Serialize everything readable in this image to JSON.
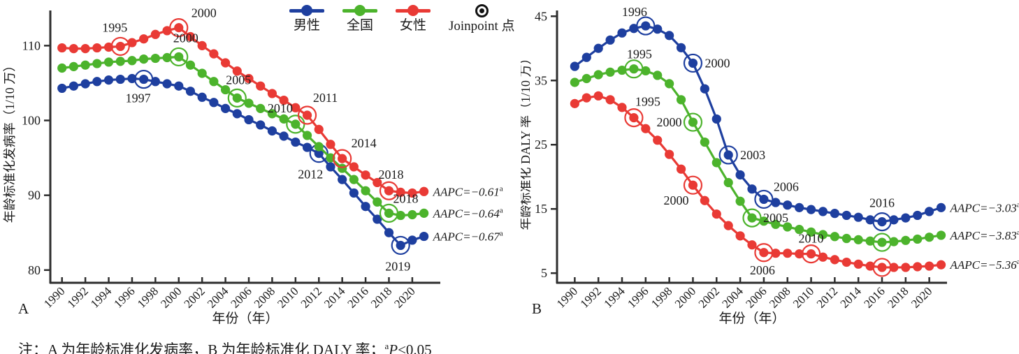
{
  "legend": {
    "items": [
      {
        "label": "男性",
        "color": "#1e3f9f",
        "type": "line-dot"
      },
      {
        "label": "全国",
        "color": "#4cb32c",
        "type": "line-dot"
      },
      {
        "label": "女性",
        "color": "#e93a35",
        "type": "line-dot"
      },
      {
        "label": "Joinpoint 点",
        "color": "#111111",
        "type": "joinpoint"
      }
    ]
  },
  "note": {
    "prefix": "注：A 为年龄标准化发病率，B 为年龄标准化 DALY 率；",
    "sup": "a",
    "p": "P",
    "rest": "<0.05"
  },
  "chart_data": [
    {
      "panel_label": "A",
      "type": "line",
      "xlabel": "年份（年）",
      "ylabel": "年龄标准化发病率（1/10 万）",
      "years": [
        1990,
        1991,
        1992,
        1993,
        1994,
        1995,
        1996,
        1997,
        1998,
        1999,
        2000,
        2001,
        2002,
        2003,
        2004,
        2005,
        2006,
        2007,
        2008,
        2009,
        2010,
        2011,
        2012,
        2013,
        2014,
        2015,
        2016,
        2017,
        2018,
        2019,
        2020,
        2021
      ],
      "xticks": [
        1990,
        1992,
        1994,
        1996,
        1998,
        2000,
        2002,
        2004,
        2006,
        2008,
        2010,
        2012,
        2014,
        2016,
        2018,
        2020
      ],
      "yticks": [
        80,
        90,
        100,
        110
      ],
      "xlim": [
        1989.0,
        2022.4
      ],
      "ylim": [
        78.3,
        114.7
      ],
      "series": [
        {
          "name": "男性",
          "color": "#1e3f9f",
          "aapc": "AAPC=−0.67",
          "aapc_sup": "a",
          "values": [
            104.3,
            104.6,
            104.9,
            105.2,
            105.4,
            105.5,
            105.6,
            105.5,
            105.2,
            104.9,
            104.6,
            103.9,
            103.1,
            102.4,
            101.6,
            100.9,
            100.1,
            99.4,
            98.6,
            97.9,
            97.1,
            96.4,
            95.6,
            93.8,
            92.1,
            90.3,
            88.5,
            86.8,
            85.0,
            83.3,
            84.0,
            84.5
          ],
          "joinpoints": [
            {
              "year": 1997,
              "label": "1997",
              "dx": -8,
              "dy": 33,
              "anchor": "middle"
            },
            {
              "year": 2012,
              "label": "2012",
              "dx": -12,
              "dy": 36,
              "anchor": "middle"
            },
            {
              "year": 2019,
              "label": "2019",
              "dx": -4,
              "dy": 36,
              "anchor": "middle"
            }
          ]
        },
        {
          "name": "全国",
          "color": "#4cb32c",
          "aapc": "AAPC=−0.64",
          "aapc_sup": "a",
          "values": [
            107.0,
            107.2,
            107.4,
            107.6,
            107.8,
            107.9,
            108.0,
            108.2,
            108.3,
            108.4,
            108.5,
            107.4,
            106.3,
            105.2,
            104.1,
            103.0,
            102.3,
            101.6,
            100.9,
            100.2,
            99.5,
            98.0,
            96.5,
            95.0,
            93.6,
            92.1,
            90.6,
            89.1,
            87.6,
            87.3,
            87.4,
            87.6
          ],
          "joinpoints": [
            {
              "year": 2000,
              "label": "2000",
              "dx": 10,
              "dy": -21,
              "anchor": "middle"
            },
            {
              "year": 2005,
              "label": "2005",
              "dx": 2,
              "dy": -20,
              "anchor": "middle"
            },
            {
              "year": 2010,
              "label": "2010",
              "dx": -22,
              "dy": -17,
              "anchor": "middle"
            },
            {
              "year": 2018,
              "label": "2018",
              "dx": 24,
              "dy": -15,
              "anchor": "middle"
            }
          ]
        },
        {
          "name": "女性",
          "color": "#e93a35",
          "aapc": "AAPC=−0.61",
          "aapc_sup": "a",
          "values": [
            109.7,
            109.6,
            109.6,
            109.7,
            109.8,
            109.9,
            110.4,
            110.9,
            111.5,
            112.0,
            112.4,
            111.2,
            110.0,
            108.9,
            107.7,
            106.6,
            105.6,
            104.6,
            103.6,
            102.7,
            101.7,
            100.7,
            98.8,
            96.8,
            94.9,
            93.8,
            92.7,
            91.7,
            90.6,
            90.4,
            90.3,
            90.5
          ],
          "joinpoints": [
            {
              "year": 1995,
              "label": "1995",
              "dx": -8,
              "dy": -21,
              "anchor": "middle"
            },
            {
              "year": 2000,
              "label": "2000",
              "dx": 36,
              "dy": -15,
              "anchor": "middle"
            },
            {
              "year": 2011,
              "label": "2011",
              "dx": 26,
              "dy": -19,
              "anchor": "middle"
            },
            {
              "year": 2014,
              "label": "2014",
              "dx": 31,
              "dy": -16,
              "anchor": "middle"
            },
            {
              "year": 2018,
              "label": "2018",
              "dx": 3,
              "dy": -17,
              "anchor": "middle"
            }
          ]
        }
      ]
    },
    {
      "panel_label": "B",
      "type": "line",
      "xlabel": "年份（年）",
      "ylabel": "年龄标准化 DALY 率（1/10 万）",
      "years": [
        1990,
        1991,
        1992,
        1993,
        1994,
        1995,
        1996,
        1997,
        1998,
        1999,
        2000,
        2001,
        2002,
        2003,
        2004,
        2005,
        2006,
        2007,
        2008,
        2009,
        2010,
        2011,
        2012,
        2013,
        2014,
        2015,
        2016,
        2017,
        2018,
        2019,
        2020,
        2021
      ],
      "xticks": [
        1990,
        1992,
        1994,
        1996,
        1998,
        2000,
        2002,
        2004,
        2006,
        2008,
        2010,
        2012,
        2014,
        2016,
        2018,
        2020
      ],
      "yticks": [
        5,
        15,
        25,
        35,
        45
      ],
      "xlim": [
        1988.5,
        2021.5
      ],
      "ylim": [
        3.5,
        45.9
      ],
      "series": [
        {
          "name": "男性",
          "color": "#1e3f9f",
          "aapc": "AAPC=−3.03",
          "aapc_sup": "a",
          "values": [
            37.2,
            38.6,
            40.0,
            41.3,
            42.4,
            43.1,
            43.5,
            43.0,
            42.0,
            40.1,
            37.7,
            33.7,
            29.0,
            23.4,
            20.3,
            18.1,
            16.5,
            16.0,
            15.6,
            15.2,
            14.9,
            14.6,
            14.3,
            14.0,
            13.7,
            13.3,
            13.0,
            13.3,
            13.6,
            14.0,
            14.6,
            15.2
          ],
          "joinpoints": [
            {
              "year": 1996,
              "label": "1996",
              "dx": -16,
              "dy": -14,
              "anchor": "middle"
            },
            {
              "year": 2000,
              "label": "2000",
              "dx": 17,
              "dy": 6,
              "anchor": "start"
            },
            {
              "year": 2003,
              "label": "2003",
              "dx": 17,
              "dy": 6,
              "anchor": "start"
            },
            {
              "year": 2006,
              "label": "2006",
              "dx": 14,
              "dy": -12,
              "anchor": "start"
            },
            {
              "year": 2016,
              "label": "2016",
              "dx": 0,
              "dy": -21,
              "anchor": "middle"
            }
          ]
        },
        {
          "name": "全国",
          "color": "#4cb32c",
          "aapc": "AAPC=−3.83",
          "aapc_sup": "a",
          "values": [
            34.7,
            35.3,
            35.9,
            36.3,
            36.6,
            36.8,
            36.5,
            35.8,
            34.5,
            32.0,
            28.5,
            25.4,
            22.2,
            19.1,
            16.2,
            13.6,
            13.1,
            12.6,
            12.2,
            11.8,
            11.4,
            11.0,
            10.7,
            10.4,
            10.2,
            10.0,
            9.8,
            9.9,
            10.1,
            10.3,
            10.6,
            10.9
          ],
          "joinpoints": [
            {
              "year": 1995,
              "label": "1995",
              "dx": 8,
              "dy": -15,
              "anchor": "middle"
            },
            {
              "year": 2000,
              "label": "2000",
              "dx": -16,
              "dy": 6,
              "anchor": "end"
            },
            {
              "year": 2005,
              "label": "2005",
              "dx": 16,
              "dy": 6,
              "anchor": "start"
            },
            {
              "year": 2016,
              "label": "",
              "dx": 0,
              "dy": 0,
              "anchor": "middle"
            }
          ]
        },
        {
          "name": "女性",
          "color": "#e93a35",
          "aapc": "AAPC=−5.36",
          "aapc_sup": "a",
          "values": [
            31.4,
            32.3,
            32.6,
            32.0,
            30.8,
            29.2,
            27.5,
            25.7,
            23.5,
            21.2,
            18.7,
            16.3,
            14.2,
            12.4,
            10.8,
            9.4,
            8.2,
            8.1,
            8.1,
            8.0,
            8.0,
            7.5,
            7.1,
            6.7,
            6.4,
            6.1,
            5.9,
            5.9,
            5.9,
            6.0,
            6.1,
            6.3
          ],
          "joinpoints": [
            {
              "year": 1995,
              "label": "1995",
              "dx": 2,
              "dy": -17,
              "anchor": "start"
            },
            {
              "year": 2000,
              "label": "2000",
              "dx": -6,
              "dy": 28,
              "anchor": "end"
            },
            {
              "year": 2006,
              "label": "2006",
              "dx": -2,
              "dy": 31,
              "anchor": "middle"
            },
            {
              "year": 2010,
              "label": "2010",
              "dx": 0,
              "dy": -16,
              "anchor": "middle"
            },
            {
              "year": 2016,
              "label": "",
              "dx": 0,
              "dy": 0,
              "anchor": "middle"
            }
          ]
        }
      ]
    }
  ]
}
